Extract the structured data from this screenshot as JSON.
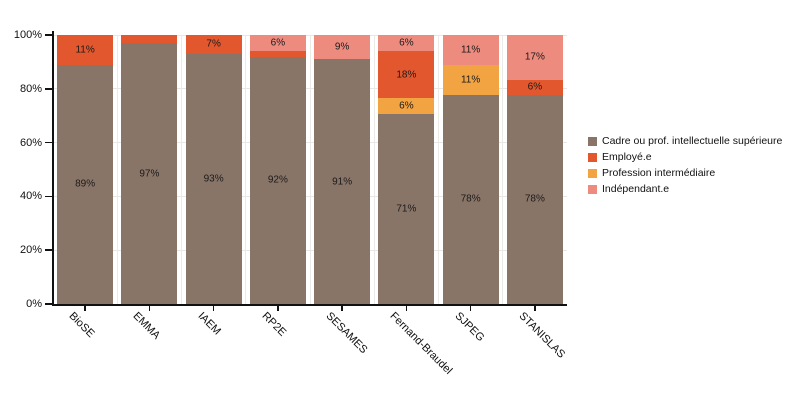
{
  "chart_data": {
    "type": "bar",
    "variant": "stacked-100-percent",
    "title": "",
    "xlabel": "",
    "ylabel": "",
    "grid": true,
    "categories": [
      "BioSE",
      "EMMA",
      "IAEM",
      "RP2E",
      "SESAMES",
      "Fernand-Braudel",
      "SJPEG",
      "STANISLAS"
    ],
    "series": [
      {
        "name": "Cadre ou prof. intellectuelle supérieure",
        "color": "#897568",
        "values": [
          89,
          97,
          93,
          92,
          91,
          70.6,
          77.8,
          77.8
        ],
        "labels": [
          "89%",
          "97%",
          "93%",
          "92%",
          "91%",
          "71%",
          "78%",
          "78%"
        ]
      },
      {
        "name": "Profession intermédiaire",
        "color": "#F2A342",
        "values": [
          0,
          0,
          0,
          0,
          0,
          5.9,
          11.1,
          0
        ],
        "labels": [
          "",
          "",
          "",
          "",
          "",
          "6%",
          "11%",
          ""
        ]
      },
      {
        "name": "Employé.e",
        "color": "#E3572F",
        "values": [
          11,
          3,
          7,
          2,
          0,
          17.6,
          0,
          5.6
        ],
        "labels": [
          "11%",
          "",
          "7%",
          "",
          "",
          "18%",
          "",
          "6%"
        ]
      },
      {
        "name": "Indépendant.e",
        "color": "#ED8B7E",
        "values": [
          0,
          0,
          0,
          6,
          9,
          5.9,
          11.1,
          16.7
        ],
        "labels": [
          "",
          "",
          "",
          "6%",
          "9%",
          "6%",
          "11%",
          "17%"
        ]
      }
    ],
    "y_axis": {
      "range": [
        0,
        100
      ],
      "ticks": [
        {
          "label": "0%",
          "value": 0
        },
        {
          "label": "20%",
          "value": 20
        },
        {
          "label": "40%",
          "value": 40
        },
        {
          "label": "60%",
          "value": 60
        },
        {
          "label": "80%",
          "value": 80
        },
        {
          "label": "100%",
          "value": 100
        }
      ]
    },
    "legend": {
      "position": "right",
      "items": [
        {
          "label": "Cadre ou prof. intellectuelle supérieure",
          "color": "#897568"
        },
        {
          "label": "Employé.e",
          "color": "#E3572F"
        },
        {
          "label": "Profession intermédiaire",
          "color": "#F2A342"
        },
        {
          "label": "Indépendant.e",
          "color": "#ED8B7E"
        }
      ]
    }
  }
}
